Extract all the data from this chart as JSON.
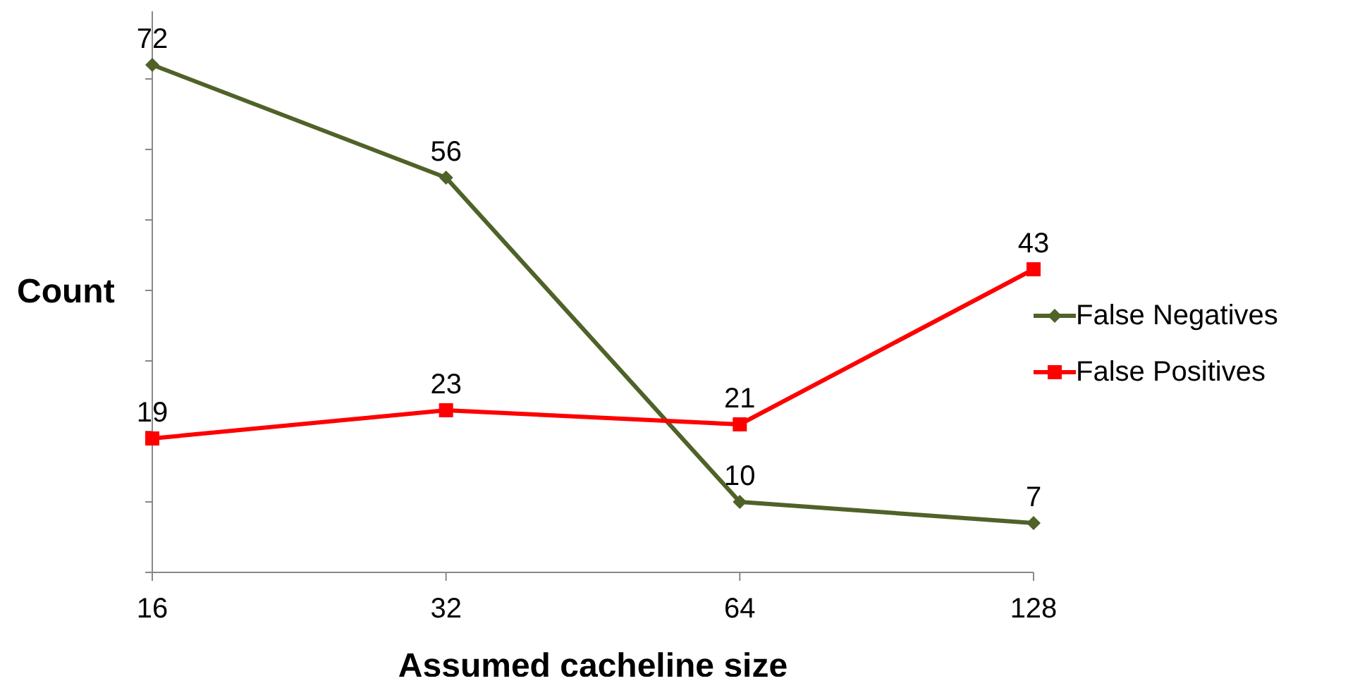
{
  "chart_data": {
    "type": "line",
    "xlabel": "Assumed cacheline size",
    "ylabel": "Count",
    "categories": [
      "16",
      "32",
      "64",
      "128"
    ],
    "series": [
      {
        "name": "False Negatives",
        "color": "#4f6228",
        "marker": "diamond",
        "values": [
          72,
          56,
          10,
          7
        ]
      },
      {
        "name": "False Positives",
        "color": "#ff0000",
        "marker": "square",
        "values": [
          19,
          23,
          21,
          43
        ]
      }
    ],
    "ylim": [
      0,
      80
    ],
    "yticks": [
      {
        "value": 0,
        "label": null
      },
      {
        "value": 10,
        "label": null
      },
      {
        "value": 20,
        "label": null
      },
      {
        "value": 30,
        "label": null
      },
      {
        "value": 40,
        "label": null
      },
      {
        "value": 50,
        "label": null
      },
      {
        "value": 60,
        "label": null
      },
      {
        "value": 70,
        "label": null
      },
      {
        "value": 80,
        "label": null
      }
    ],
    "tick_labels": "x",
    "data_labels": true,
    "grid": false,
    "legend": "right",
    "line_style": "solid"
  }
}
